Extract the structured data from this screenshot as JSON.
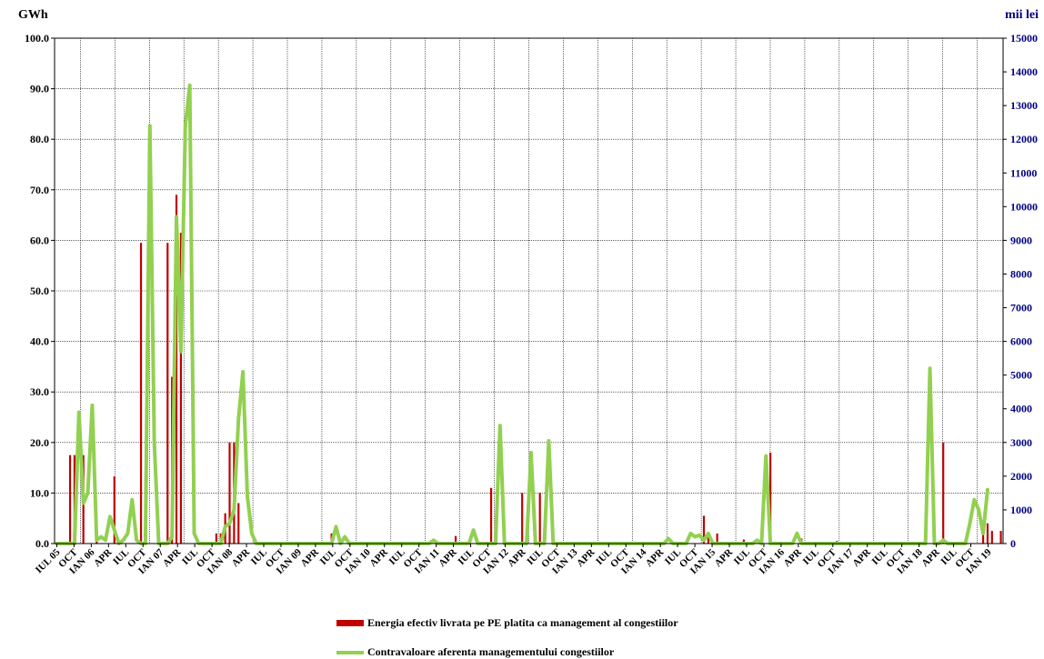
{
  "chart_data": {
    "type": "bar+line",
    "left_axis_title": "GWh",
    "right_axis_title": "mii lei",
    "left_ylim": [
      0,
      100
    ],
    "left_ticks": [
      "0.0",
      "10.0",
      "20.0",
      "30.0",
      "40.0",
      "50.0",
      "60.0",
      "70.0",
      "80.0",
      "90.0",
      "100.0"
    ],
    "right_ylim": [
      0,
      15000
    ],
    "right_ticks": [
      "0",
      "1000",
      "2000",
      "3000",
      "4000",
      "5000",
      "6000",
      "7000",
      "8000",
      "9000",
      "10000",
      "11000",
      "12000",
      "13000",
      "14000",
      "15000"
    ],
    "x_tick_labels": [
      "IUL 05",
      "OCT",
      "IAN 06",
      "APR",
      "IUL",
      "OCT",
      "IAN 07",
      "APR",
      "IUL",
      "OCT",
      "IAN 08",
      "APR",
      "IUL",
      "OCT",
      "IAN 09",
      "APR",
      "IUL",
      "OCT",
      "IAN 10",
      "APR",
      "IUL",
      "OCT",
      "IAN 11",
      "APR",
      "IUL",
      "OCT",
      "IAN 12",
      "APR",
      "IUL",
      "OCT",
      "IAN 13",
      "APR",
      "IUL",
      "OCT",
      "IAN 14",
      "APR",
      "IUL",
      "OCT",
      "IAN 15",
      "APR",
      "IUL",
      "OCT",
      "IAN 16",
      "APR",
      "IUL",
      "OCT",
      "IAN 17",
      "APR",
      "IUL",
      "OCT",
      "IAN 18",
      "APR",
      "IUL",
      "OCT",
      "IAN 19"
    ],
    "grid": true,
    "series": [
      {
        "name": "Energia efectiv livrata pe PE platita ca management al congestiilor",
        "type": "bar",
        "axis": "left",
        "color": "#c00000",
        "values": [
          0,
          0,
          0,
          17.5,
          17.5,
          0,
          17.5,
          0,
          0,
          3,
          0,
          0,
          0,
          13.3,
          0,
          0,
          0,
          0,
          0,
          59.5,
          13,
          0,
          0,
          0,
          0,
          59.5,
          33,
          69,
          61.5,
          0,
          0,
          0,
          0,
          0,
          0,
          0,
          2,
          2,
          6,
          20,
          20,
          8,
          0,
          0,
          0,
          0,
          0,
          0,
          0,
          0,
          0,
          0,
          0,
          0,
          0,
          0,
          0,
          0,
          0,
          0,
          0,
          0,
          2,
          0,
          0,
          0,
          0,
          0,
          0,
          0,
          0,
          0,
          0,
          0,
          0,
          0,
          0,
          0,
          0,
          0,
          0,
          0,
          0,
          0,
          0,
          0,
          0,
          0,
          0,
          0,
          1.5,
          0,
          0,
          0,
          0,
          0,
          0,
          0,
          11,
          0,
          0,
          0,
          0,
          0,
          0,
          10,
          0,
          0,
          0,
          10,
          0,
          0,
          0,
          0,
          0,
          0,
          0,
          0,
          0,
          0,
          0,
          0,
          0,
          0,
          0,
          0,
          0,
          0,
          0,
          0,
          0,
          0,
          0,
          0,
          0,
          0,
          0,
          0,
          0,
          0,
          0,
          0,
          0,
          0,
          0,
          0,
          5.5,
          2,
          0,
          2,
          0,
          0,
          0,
          0,
          0,
          0.8,
          0,
          0,
          0,
          0,
          0,
          18,
          0,
          0,
          0,
          0,
          0,
          0,
          1,
          0,
          0,
          0,
          0,
          0,
          0,
          0,
          0.5,
          0,
          0,
          0,
          0,
          0,
          0,
          0,
          0,
          0,
          0,
          0,
          0,
          0,
          0,
          0,
          0,
          0,
          0,
          0,
          1.5,
          0,
          0,
          0,
          20,
          0,
          0,
          0,
          0,
          0,
          0,
          0,
          0,
          2,
          4,
          2.5,
          0,
          2.5
        ]
      },
      {
        "name": "Contravaloare aferenta managementului congestiilor",
        "type": "line",
        "axis": "right",
        "color": "#92d050",
        "values": [
          0,
          0,
          0,
          0,
          0,
          3900,
          1200,
          1500,
          4100,
          100,
          200,
          100,
          800,
          400,
          0,
          100,
          300,
          1300,
          100,
          0,
          0,
          12400,
          3000,
          0,
          0,
          0,
          200,
          9700,
          5700,
          12400,
          13600,
          300,
          0,
          0,
          0,
          0,
          0,
          0,
          500,
          600,
          1000,
          3700,
          5100,
          1400,
          300,
          0,
          0,
          0,
          0,
          0,
          0,
          0,
          0,
          0,
          0,
          0,
          0,
          0,
          0,
          0,
          0,
          0,
          0,
          500,
          0,
          200,
          0,
          0,
          0,
          0,
          0,
          0,
          0,
          0,
          0,
          0,
          0,
          0,
          0,
          0,
          0,
          0,
          0,
          0,
          0,
          100,
          0,
          0,
          0,
          0,
          0,
          0,
          0,
          0,
          400,
          0,
          0,
          0,
          0,
          0,
          3500,
          0,
          0,
          0,
          0,
          0,
          0,
          2700,
          0,
          0,
          0,
          3050,
          0,
          0,
          0,
          0,
          0,
          0,
          0,
          0,
          0,
          0,
          0,
          0,
          0,
          0,
          0,
          0,
          0,
          0,
          0,
          0,
          0,
          0,
          0,
          0,
          0,
          0,
          150,
          0,
          0,
          0,
          0,
          300,
          200,
          250,
          100,
          300,
          0,
          0,
          0,
          0,
          0,
          0,
          0,
          0,
          0,
          0,
          100,
          0,
          2600,
          0,
          0,
          0,
          0,
          0,
          0,
          300,
          0,
          0,
          0,
          0,
          0,
          0,
          0,
          0,
          0,
          0,
          0,
          0,
          0,
          0,
          0,
          0,
          0,
          0,
          0,
          0,
          0,
          0,
          0,
          0,
          0,
          0,
          0,
          0,
          0,
          5200,
          0,
          0,
          100,
          0,
          0,
          0,
          0,
          0,
          600,
          1300,
          1000,
          300,
          1600
        ]
      }
    ]
  }
}
